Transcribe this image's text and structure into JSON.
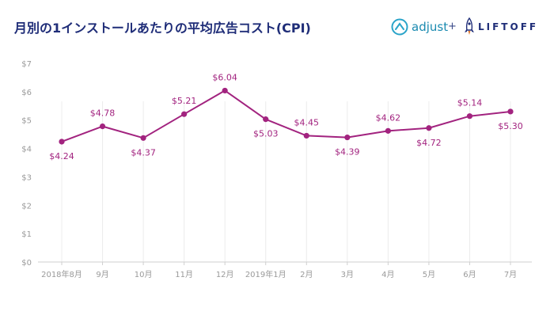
{
  "title": "月別の1インストールあたりの平均広告コスト(CPI)",
  "logos": {
    "adjust": "adjust",
    "plus": "+",
    "liftoff": "LIFTOFF"
  },
  "colors": {
    "title": "#1f2d78",
    "line": "#a2237f",
    "axis_text": "#9a9a9a",
    "grid": "#ececec"
  },
  "chart_data": {
    "type": "line",
    "title": "月別の1インストールあたりの平均広告コスト(CPI)",
    "xlabel": "",
    "ylabel": "",
    "categories": [
      "2018年8月",
      "9月",
      "10月",
      "11月",
      "12月",
      "2019年1月",
      "2月",
      "3月",
      "4月",
      "5月",
      "6月",
      "7月"
    ],
    "values": [
      4.24,
      4.78,
      4.37,
      5.21,
      6.04,
      5.03,
      4.45,
      4.39,
      4.62,
      4.72,
      5.14,
      5.3
    ],
    "data_labels": [
      "$4.24",
      "$4.78",
      "$4.37",
      "$5.21",
      "$6.04",
      "$5.03",
      "$4.45",
      "$4.39",
      "$4.62",
      "$4.72",
      "$5.14",
      "$5.30"
    ],
    "label_positions": [
      "below",
      "above",
      "below",
      "above",
      "above",
      "below",
      "above",
      "below",
      "above",
      "below",
      "above",
      "below"
    ],
    "yticks": [
      "$0",
      "$1",
      "$2",
      "$3",
      "$4",
      "$5",
      "$6",
      "$7"
    ],
    "ylim": [
      0,
      7
    ],
    "grid": "vertical",
    "legend": "none"
  }
}
